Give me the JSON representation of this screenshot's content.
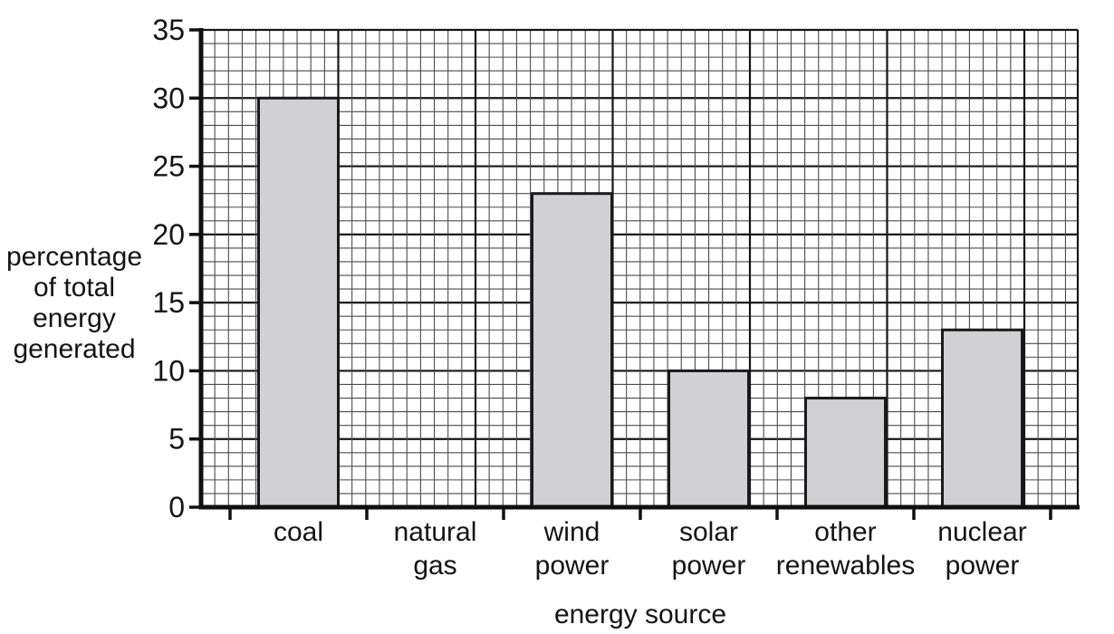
{
  "chart_data": {
    "type": "bar",
    "title": "",
    "xlabel": "energy source",
    "ylabel": "percentage of total energy generated",
    "ylabel_lines": [
      "percentage",
      "of total",
      "energy",
      "generated"
    ],
    "categories": [
      "coal",
      "natural gas",
      "wind power",
      "solar power",
      "other renewables",
      "nuclear power"
    ],
    "category_label_lines": [
      [
        "coal"
      ],
      [
        "natural",
        "gas"
      ],
      [
        "wind",
        "power"
      ],
      [
        "solar",
        "power"
      ],
      [
        "other",
        "renewables"
      ],
      [
        "nuclear",
        "power"
      ]
    ],
    "values": [
      30,
      0,
      23,
      10,
      8,
      13
    ],
    "series": [
      {
        "name": "percentage of total energy generated",
        "values": [
          30,
          0,
          23,
          10,
          8,
          13
        ]
      }
    ],
    "ylim": [
      0,
      35
    ],
    "yticks": [
      0,
      5,
      10,
      15,
      20,
      25,
      30,
      35
    ],
    "grid": {
      "style": "graph-paper",
      "y_minor_every_units": 1,
      "y_major_every_units": 5,
      "x_major_every_minor_cells": 10,
      "visible": true
    },
    "legend": "none",
    "colors": {
      "bar_fill": "#d1d1d3",
      "bar_stroke": "#1a1a1a",
      "grid_minor": "#4b4b4b",
      "grid_major": "#161616",
      "axis": "#101010",
      "text": "#141414",
      "background": "#ffffff"
    }
  }
}
